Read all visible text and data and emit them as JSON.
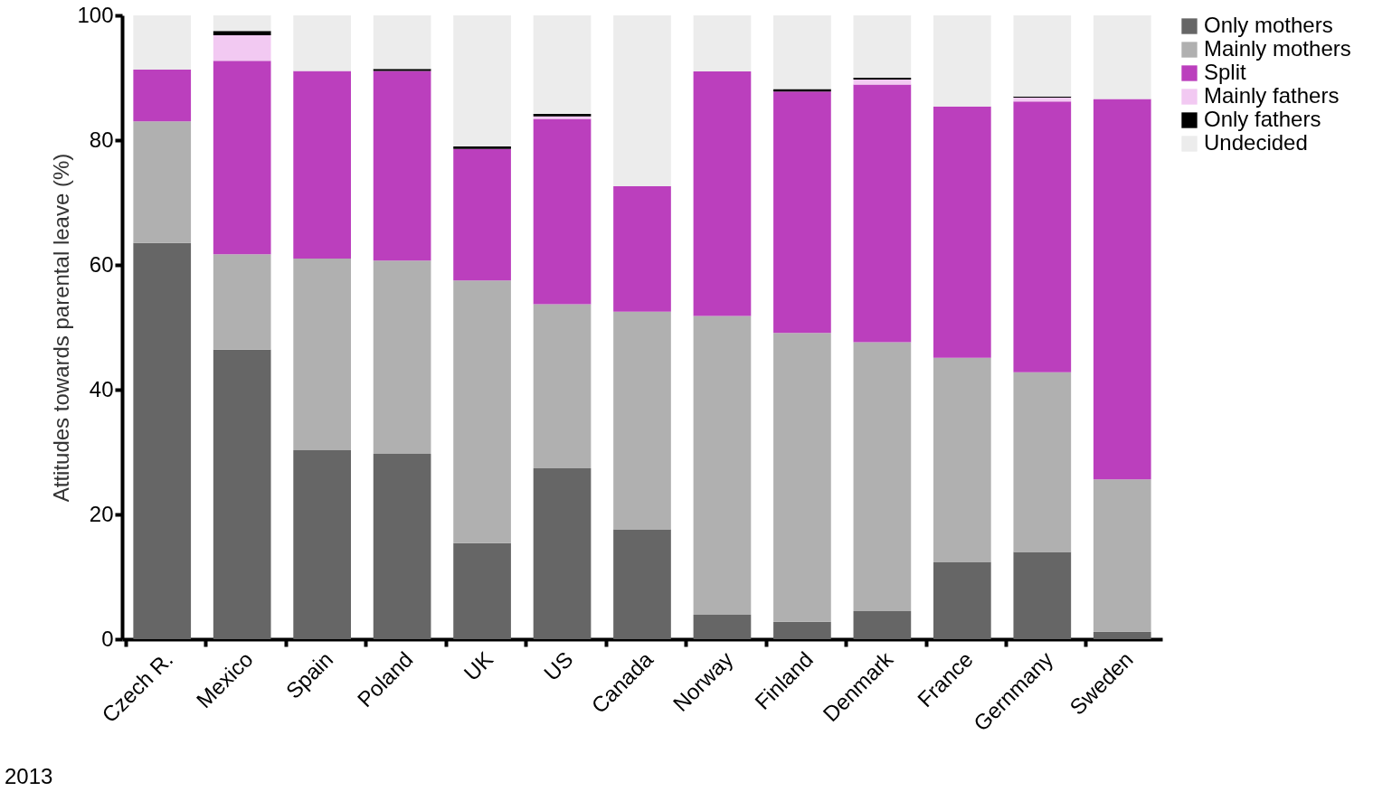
{
  "chart_data": {
    "type": "bar",
    "stacked": true,
    "ylabel": "Attitudes towards parental leave (%)",
    "categories": [
      "Czech R.",
      "Mexico",
      "Spain",
      "Poland",
      "UK",
      "US",
      "Canada",
      "Norway",
      "Finland",
      "Denmark",
      "France",
      "Gernmany",
      "Sweden"
    ],
    "series": [
      {
        "name": "Only mothers",
        "color": "#666666",
        "values": [
          63.5,
          46.4,
          30.3,
          29.7,
          15.4,
          27.4,
          17.6,
          3.9,
          2.8,
          4.5,
          12.4,
          14.0,
          1.2
        ]
      },
      {
        "name": "Mainly mothers",
        "color": "#b0b0b0",
        "values": [
          19.5,
          15.3,
          30.7,
          31.0,
          42.1,
          26.3,
          34.9,
          47.9,
          46.3,
          43.1,
          32.7,
          28.8,
          24.4
        ]
      },
      {
        "name": "Split",
        "color": "#bb3fbd",
        "values": [
          8.3,
          31.0,
          30.1,
          30.4,
          21.1,
          29.7,
          20.1,
          39.2,
          38.7,
          41.3,
          40.3,
          43.4,
          61.0
        ]
      },
      {
        "name": "Mainly fathers",
        "color": "#f2c9f2",
        "values": [
          null,
          4.1,
          null,
          null,
          null,
          0.4,
          null,
          null,
          null,
          0.8,
          null,
          0.6,
          null
        ]
      },
      {
        "name": "Only fathers",
        "color": "#000000",
        "values": [
          null,
          0.7,
          null,
          0.3,
          0.4,
          0.4,
          null,
          null,
          0.4,
          0.3,
          null,
          0.2,
          null
        ]
      },
      {
        "name": "Undecided",
        "color": "#ececec",
        "values": [
          8.7,
          2.5,
          8.9,
          8.6,
          21.0,
          15.8,
          27.4,
          9.0,
          11.8,
          10.0,
          14.6,
          13.0,
          13.4
        ]
      }
    ],
    "ylim": [
      0,
      100
    ],
    "yticks": [
      0,
      20,
      40,
      60,
      80,
      100
    ],
    "grid": false,
    "legend": "right",
    "annotations": [
      "2013"
    ]
  }
}
